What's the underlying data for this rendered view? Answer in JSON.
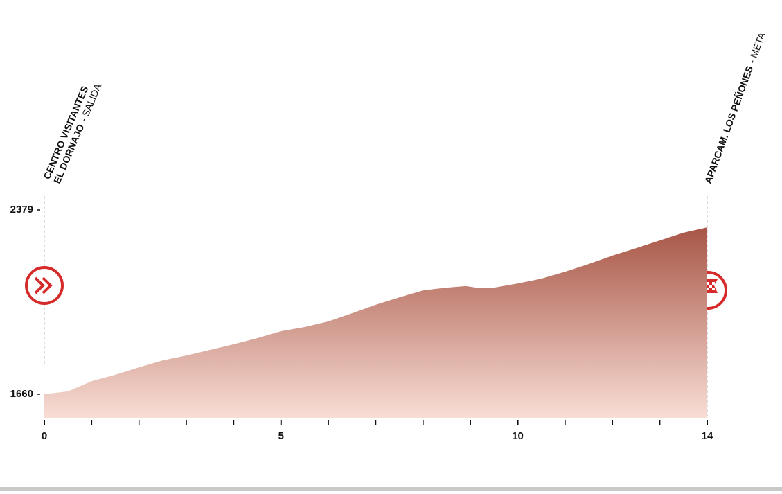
{
  "chart_data": {
    "type": "area",
    "x": [
      0,
      0.5,
      1,
      1.5,
      2,
      2.5,
      3,
      3.5,
      4,
      4.5,
      5,
      5.5,
      6,
      6.5,
      7,
      7.5,
      8,
      8.5,
      8.9,
      9.2,
      9.5,
      10,
      10.5,
      11,
      11.5,
      12,
      12.5,
      13,
      13.5,
      14
    ],
    "values": [
      1660,
      1671,
      1711,
      1736,
      1765,
      1792,
      1811,
      1833,
      1855,
      1879,
      1906,
      1922,
      1944,
      1976,
      2009,
      2038,
      2065,
      2076,
      2082,
      2074,
      2076,
      2092,
      2111,
      2138,
      2168,
      2201,
      2230,
      2260,
      2290,
      2311
    ],
    "color_top": "#a85646",
    "color_bottom": "#f8ddd5",
    "xlim": [
      0,
      14
    ],
    "xticks": [
      0,
      5,
      10,
      14
    ],
    "xminorticks": [
      1,
      2,
      3,
      4,
      6,
      7,
      8,
      9,
      11,
      12,
      13
    ],
    "ylim": [
      1568,
      2379
    ],
    "yticks": [
      1660,
      2379
    ],
    "start": {
      "lines": [
        "CENTRO VISITANTES",
        "EL DORNAJO"
      ],
      "suffix": "- SALIDA"
    },
    "finish": {
      "lines": [
        "APARCAM. LOS PEÑONES"
      ],
      "suffix": "- META"
    }
  }
}
